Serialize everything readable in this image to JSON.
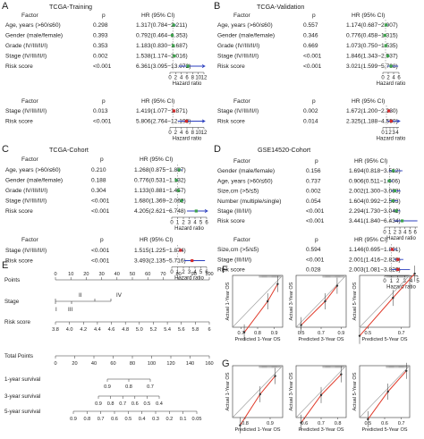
{
  "chart_data": [
    {
      "type": "forest",
      "panel_label": "A",
      "title": "TCGA-Training",
      "blocks": [
        {
          "header": {
            "factor": "Factor",
            "p": "p",
            "hr": "HR (95% CI)"
          },
          "rows": [
            {
              "factor": "Age, years (>60/≤60)",
              "p": "0.298",
              "hr_text": "1.317(0.784−2.211)",
              "hr": 1.317,
              "lo": 0.784,
              "hi": 2.211
            },
            {
              "factor": "Gender (male/female)",
              "p": "0.393",
              "hr_text": "0.792(0.464−1.353)",
              "hr": 0.792,
              "lo": 0.464,
              "hi": 1.353
            },
            {
              "factor": "Grade (IV/III/II/I)",
              "p": "0.353",
              "hr_text": "1.183(0.830−1.687)",
              "hr": 1.183,
              "lo": 0.83,
              "hi": 1.687
            },
            {
              "factor": "Stage (IV/III/II/I)",
              "p": "0.002",
              "hr_text": "1.538(1.174−2.016)",
              "hr": 1.538,
              "lo": 1.174,
              "hi": 2.016
            },
            {
              "factor": "Risk score",
              "p": "<0.001",
              "hr_text": "6.361(3.095−13.072)",
              "hr": 6.361,
              "lo": 3.095,
              "hi": 13.072
            }
          ],
          "xlim": [
            0,
            12
          ],
          "ticks": [
            "0",
            "2",
            "4",
            "6",
            "8",
            "10",
            "12"
          ],
          "xlabel": "Hazard ratio"
        },
        {
          "header": {
            "factor": "Factor",
            "p": "p",
            "hr": "HR (95% CI)"
          },
          "rows": [
            {
              "factor": "Stage (IV/III/II/I)",
              "p": "0.013",
              "hr_text": "1.419(1.077−1.871)",
              "hr": 1.419,
              "lo": 1.077,
              "hi": 1.871
            },
            {
              "factor": "Risk score",
              "p": "<0.001",
              "hr_text": "5.806(2.764−12.198)",
              "hr": 5.806,
              "lo": 2.764,
              "hi": 12.198
            }
          ],
          "xlim": [
            0,
            12
          ],
          "ticks": [
            "0",
            "2",
            "4",
            "6",
            "8",
            "10",
            "12"
          ],
          "xlabel": "Hazard ratio"
        }
      ]
    },
    {
      "type": "forest",
      "panel_label": "B",
      "title": "TCGA-Validation",
      "blocks": [
        {
          "header": {
            "factor": "Factor",
            "p": "p",
            "hr": "HR (95% CI)"
          },
          "rows": [
            {
              "factor": "Age, years (>60/≤60)",
              "p": "0.557",
              "hr_text": "1.174(0.687−2.007)",
              "hr": 1.174,
              "lo": 0.687,
              "hi": 2.007
            },
            {
              "factor": "Gender (male/female)",
              "p": "0.346",
              "hr_text": "0.776(0.458−1.315)",
              "hr": 0.776,
              "lo": 0.458,
              "hi": 1.315
            },
            {
              "factor": "Grade (IV/III/II/I)",
              "p": "0.669",
              "hr_text": "1.073(0.750−1.535)",
              "hr": 1.073,
              "lo": 0.75,
              "hi": 1.535
            },
            {
              "factor": "Stage (IV/III/II/I)",
              "p": "<0.001",
              "hr_text": "1.846(1.343−2.537)",
              "hr": 1.846,
              "lo": 1.343,
              "hi": 2.537
            },
            {
              "factor": "Risk score",
              "p": "<0.001",
              "hr_text": "3.021(1.599−5.708)",
              "hr": 3.021,
              "lo": 1.599,
              "hi": 5.708
            }
          ],
          "xlim": [
            0,
            6
          ],
          "ticks": [
            "0",
            "2",
            "4",
            "6"
          ],
          "xlabel": "Hazard ratio"
        },
        {
          "header": {
            "factor": "Factor",
            "p": "p",
            "hr": "HR (95% CI)"
          },
          "rows": [
            {
              "factor": "Stage (IV/III/II/I)",
              "p": "0.002",
              "hr_text": "1.672(1.200−2.330)",
              "hr": 1.672,
              "lo": 1.2,
              "hi": 2.33
            },
            {
              "factor": "Risk score",
              "p": "0.014",
              "hr_text": "2.325(1.188−4.550)",
              "hr": 2.325,
              "lo": 1.188,
              "hi": 4.55
            }
          ],
          "xlim": [
            0,
            4.5
          ],
          "ticks": [
            "0",
            "1",
            "2",
            "3",
            "4"
          ],
          "xlabel": "Hazard ratio"
        }
      ]
    },
    {
      "type": "forest",
      "panel_label": "C",
      "title": "TCGA-Cohort",
      "blocks": [
        {
          "header": {
            "factor": "Factor",
            "p": "p",
            "hr": "HR (95% CI)"
          },
          "rows": [
            {
              "factor": "Age, years (>60/≤60)",
              "p": "0.210",
              "hr_text": "1.268(0.875−1.837)",
              "hr": 1.268,
              "lo": 0.875,
              "hi": 1.837
            },
            {
              "factor": "Gender (male/female)",
              "p": "0.188",
              "hr_text": "0.776(0.531−1.132)",
              "hr": 0.776,
              "lo": 0.531,
              "hi": 1.132
            },
            {
              "factor": "Grade (IV/III/II/I)",
              "p": "0.304",
              "hr_text": "1.133(0.881−1.457)",
              "hr": 1.133,
              "lo": 0.881,
              "hi": 1.457
            },
            {
              "factor": "Stage (IV/III/II/I)",
              "p": "<0.001",
              "hr_text": "1.680(1.369−2.062)",
              "hr": 1.68,
              "lo": 1.369,
              "hi": 2.062
            },
            {
              "factor": "Risk score",
              "p": "<0.001",
              "hr_text": "4.205(2.621−6.748)",
              "hr": 4.205,
              "lo": 2.621,
              "hi": 6.748
            }
          ],
          "xlim": [
            0,
            6
          ],
          "ticks": [
            "0",
            "1",
            "2",
            "3",
            "4",
            "5",
            "6"
          ],
          "xlabel": "Hazard ratio"
        },
        {
          "header": {
            "factor": "Factor",
            "p": "p",
            "hr": "HR (95% CI)"
          },
          "rows": [
            {
              "factor": "Stage (IV/III/II/I)",
              "p": "<0.001",
              "hr_text": "1.515(1.225−1.874)",
              "hr": 1.515,
              "lo": 1.225,
              "hi": 1.874
            },
            {
              "factor": "Risk score",
              "p": "<0.001",
              "hr_text": "3.493(2.135−5.716)",
              "hr": 3.493,
              "lo": 2.135,
              "hi": 5.716
            }
          ],
          "xlim": [
            0,
            6
          ],
          "ticks": [
            "0",
            "1",
            "2",
            "3",
            "4",
            "5",
            "6"
          ],
          "xlabel": "Hazard ratio"
        }
      ]
    },
    {
      "type": "forest",
      "panel_label": "D",
      "title": "GSE14520-Cohort",
      "blocks": [
        {
          "header": {
            "factor": "Factor",
            "p": "p",
            "hr": "HR (95% CI)"
          },
          "rows": [
            {
              "factor": "Gender (male/female)",
              "p": "0.156",
              "hr_text": "1.694(0.818−3.512)",
              "hr": 1.694,
              "lo": 0.818,
              "hi": 3.512
            },
            {
              "factor": "Age, years (>60/≤60)",
              "p": "0.737",
              "hr_text": "0.906(0.511−1.606)",
              "hr": 0.906,
              "lo": 0.511,
              "hi": 1.606
            },
            {
              "factor": "Size,cm (>5/≤5)",
              "p": "0.002",
              "hr_text": "2.002(1.300−3.083)",
              "hr": 2.002,
              "lo": 1.3,
              "hi": 3.083
            },
            {
              "factor": "Number (multiple/single)",
              "p": "0.054",
              "hr_text": "1.604(0.992−2.593)",
              "hr": 1.604,
              "lo": 0.992,
              "hi": 2.593
            },
            {
              "factor": "Stage (III/II/I)",
              "p": "<0.001",
              "hr_text": "2.294(1.730−3.042)",
              "hr": 2.294,
              "lo": 1.73,
              "hi": 3.042
            },
            {
              "factor": "Risk score",
              "p": "<0.001",
              "hr_text": "3.441(1.840−6.434)",
              "hr": 3.441,
              "lo": 1.84,
              "hi": 6.434
            }
          ],
          "xlim": [
            0,
            6.5
          ],
          "ticks": [
            "0",
            "1",
            "2",
            "3",
            "4",
            "5",
            "6"
          ],
          "xlabel": "Hazard ratio"
        },
        {
          "header": {
            "factor": "Factor",
            "p": "p",
            "hr": "HR (95% CI)"
          },
          "rows": [
            {
              "factor": "Size,cm (>5/≤5)",
              "p": "0.594",
              "hr_text": "1.146(0.695−1.891)",
              "hr": 1.146,
              "lo": 0.695,
              "hi": 1.891
            },
            {
              "factor": "Stage (III/II/I)",
              "p": "<0.001",
              "hr_text": "2.001(1.416−2.828)",
              "hr": 2.001,
              "lo": 1.416,
              "hi": 2.828
            },
            {
              "factor": "Risk score",
              "p": "0.028",
              "hr_text": "2.003(1.081−3.826)",
              "hr": 2.003,
              "lo": 1.081,
              "hi": 3.826
            }
          ],
          "xlim": [
            0,
            5
          ],
          "ticks": [
            "0",
            "1",
            "2",
            "3",
            "4",
            "5"
          ],
          "xlabel": "Hazard ratio"
        }
      ]
    },
    {
      "type": "nomogram",
      "panel_label": "E",
      "rows": [
        {
          "label": "Points",
          "ticks": [
            "0",
            "10",
            "20",
            "30",
            "40",
            "50",
            "60",
            "70",
            "80",
            "90",
            "100"
          ]
        },
        {
          "label": "Stage",
          "ticks": [
            "II",
            "IV",
            "I",
            "III"
          ]
        },
        {
          "label": "Risk score",
          "ticks": [
            "3.8",
            "4.0",
            "4.2",
            "4.4",
            "4.6",
            "4.8",
            "5.0",
            "5.2",
            "5.4",
            "5.6",
            "5.8",
            "6"
          ]
        },
        {
          "label": "Total Points",
          "ticks": [
            "0",
            "20",
            "40",
            "60",
            "80",
            "100",
            "120",
            "140",
            "160"
          ]
        },
        {
          "label": "1-year survival",
          "ticks": [
            "0.9",
            "0.8",
            "0.7"
          ]
        },
        {
          "label": "3-year survival",
          "ticks": [
            "0.9",
            "0.8",
            "0.7",
            "0.6",
            "0.5",
            "0.4"
          ]
        },
        {
          "label": "5-year survival",
          "ticks": [
            "0.9",
            "0.8",
            "0.7",
            "0.6",
            "0.5",
            "0.4",
            "0.3",
            "0.2",
            "0.1",
            "0.05"
          ]
        }
      ]
    },
    {
      "type": "line",
      "panel_label": "F",
      "plots": [
        {
          "xlabel": "Predicted 1-Year OS",
          "ylabel": "Actual 1-Year OS",
          "xticks": [
            "0.7",
            "0.8",
            "0.9"
          ],
          "points": [
            [
              0.72,
              0.62
            ],
            [
              0.86,
              0.8
            ],
            [
              0.92,
              0.9
            ]
          ]
        },
        {
          "xlabel": "Predicted 3-Year OS",
          "ylabel": "Actual 3-Year OS",
          "xticks": [
            "0.5",
            "0.7",
            "0.9"
          ],
          "points": [
            [
              0.5,
              0.47
            ],
            [
              0.74,
              0.7
            ],
            [
              0.86,
              0.85
            ]
          ]
        },
        {
          "xlabel": "Predicted 5-Year OS",
          "ylabel": "Actual 5-Year OS",
          "xticks": [
            "0.5",
            "0.7"
          ],
          "points": [
            [
              0.45,
              0.4
            ],
            [
              0.65,
              0.62
            ],
            [
              0.78,
              0.76
            ]
          ]
        }
      ]
    },
    {
      "type": "line",
      "panel_label": "G",
      "plots": [
        {
          "xlabel": "Predicted 1-Year OS",
          "ylabel": "Actual 1-Year OS",
          "xticks": [
            "0.8",
            "0.9"
          ],
          "points": [
            [
              0.78,
              0.72
            ],
            [
              0.86,
              0.84
            ],
            [
              0.92,
              0.91
            ]
          ]
        },
        {
          "xlabel": "Predicted 3-Year OS",
          "ylabel": "Actual 3-Year OS",
          "xticks": [
            "0.6",
            "0.7",
            "0.8"
          ],
          "points": [
            [
              0.58,
              0.52
            ],
            [
              0.7,
              0.68
            ],
            [
              0.82,
              0.8
            ]
          ]
        },
        {
          "xlabel": "Predicted 5-Year OS",
          "ylabel": "Actual 5-Year OS",
          "xticks": [
            "0.5",
            "0.6",
            "0.7"
          ],
          "points": [
            [
              0.5,
              0.44
            ],
            [
              0.62,
              0.6
            ],
            [
              0.73,
              0.72
            ]
          ]
        }
      ]
    }
  ],
  "colors": {
    "green_marker": "#3fa34d",
    "blue_ci": "#2b3fbf",
    "red_marker": "#d62d2d",
    "cal_line": "#e03a2a",
    "ref_line": "#9a9a9a"
  }
}
